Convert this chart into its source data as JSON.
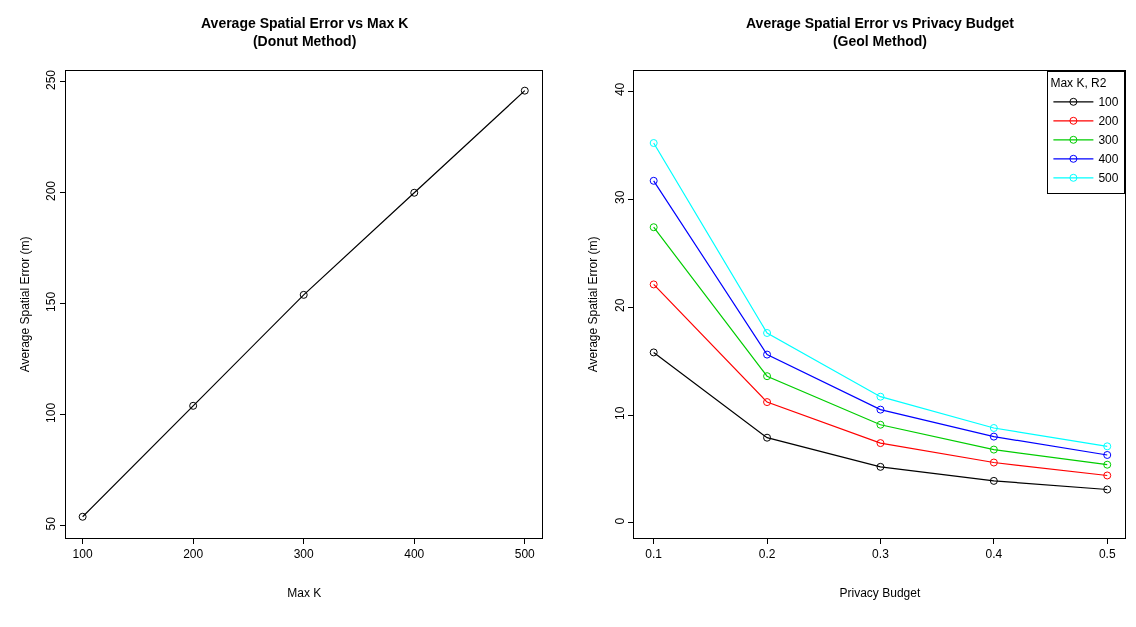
{
  "chart_data": [
    {
      "type": "line",
      "title": "Average Spatial Error vs Max K",
      "subtitle": "(Donut Method)",
      "xlabel": "Max K",
      "ylabel": "Average Spatial Error (m)",
      "x": [
        100,
        200,
        300,
        400,
        500
      ],
      "series": [
        {
          "color": "#000000",
          "values": [
            54,
            104,
            154,
            200,
            246
          ]
        }
      ],
      "xlim": [
        85,
        516
      ],
      "xticks": [
        100,
        200,
        300,
        400,
        500
      ],
      "ylim": [
        44.4,
        255
      ],
      "yticks": [
        50,
        100,
        150,
        200,
        250
      ],
      "legend": false,
      "marker": "circle",
      "line_style": "solid"
    },
    {
      "type": "line",
      "title": "Average Spatial Error vs Privacy Budget",
      "subtitle": "(Geol Method)",
      "xlabel": "Privacy Budget",
      "ylabel": "Average Spatial Error (m)",
      "legend_title": "Max K, R2",
      "x": [
        0.1,
        0.2,
        0.3,
        0.4,
        0.5
      ],
      "series": [
        {
          "name": "100",
          "color": "#000000",
          "values": [
            15.8,
            7.9,
            5.2,
            3.9,
            3.1
          ]
        },
        {
          "name": "200",
          "color": "#ff0000",
          "values": [
            22.1,
            11.2,
            7.4,
            5.6,
            4.4
          ]
        },
        {
          "name": "300",
          "color": "#00cd00",
          "values": [
            27.4,
            13.6,
            9.1,
            6.8,
            5.4
          ]
        },
        {
          "name": "400",
          "color": "#0000ff",
          "values": [
            31.7,
            15.6,
            10.5,
            8.0,
            6.3
          ]
        },
        {
          "name": "500",
          "color": "#00ffff",
          "values": [
            35.2,
            17.6,
            11.7,
            8.8,
            7.1
          ]
        }
      ],
      "xlim": [
        0.083,
        0.516
      ],
      "xticks": [
        0.1,
        0.2,
        0.3,
        0.4,
        0.5
      ],
      "ylim": [
        -1.4,
        41.9
      ],
      "yticks": [
        0,
        10,
        20,
        30,
        40
      ],
      "legend": "top right",
      "marker": "circle",
      "line_style": "solid"
    }
  ]
}
